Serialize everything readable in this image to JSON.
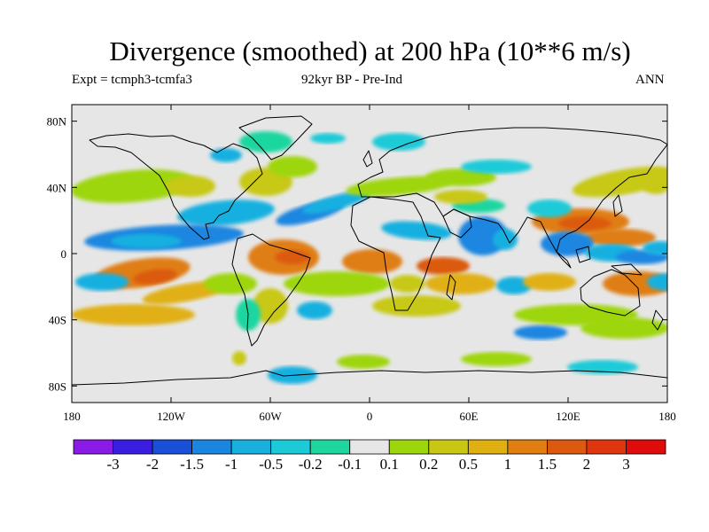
{
  "title": "Divergence (smoothed) at 200 hPa (10**6 m/s)",
  "subtitle_left": "Expt = tcmph3-tcmfa3",
  "subtitle_center": "92kyr BP - Pre-Ind",
  "subtitle_right": "ANN",
  "map": {
    "projection": "equirectangular",
    "lon_range": [
      -180,
      180
    ],
    "lat_range": [
      -90,
      90
    ],
    "background_color": "#e6e6e6",
    "lon_ticks": [
      "180",
      "120W",
      "60W",
      "0",
      "60E",
      "120E",
      "180"
    ],
    "lat_ticks": [
      "80N",
      "40N",
      "0",
      "40S",
      "80S"
    ]
  },
  "colorbar": {
    "labels": [
      "-3",
      "-2",
      "-1.5",
      "-1",
      "-0.5",
      "-0.2",
      "-0.1",
      "0.1",
      "0.2",
      "0.5",
      "1",
      "1.5",
      "2",
      "3"
    ],
    "colors": [
      "#8a1ae6",
      "#3a1ee0",
      "#1a50d8",
      "#1a86e0",
      "#19b0e0",
      "#1ccad8",
      "#1ed6a0",
      "#e6e6e6",
      "#9ed60e",
      "#c8c814",
      "#e0b012",
      "#e07e12",
      "#dc5a10",
      "#e0360e",
      "#e00c0c"
    ]
  }
}
